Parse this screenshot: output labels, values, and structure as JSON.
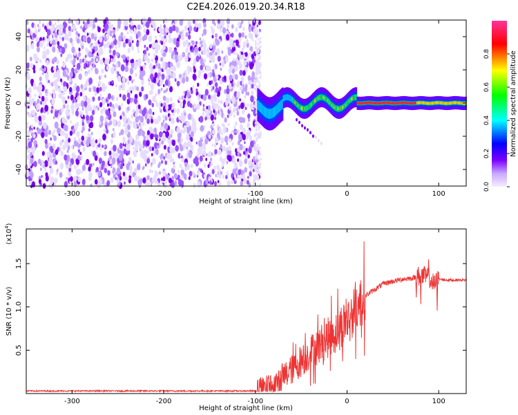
{
  "chart_data": [
    {
      "type": "heatmap",
      "title": "C2E4.2026.019.20.34.R18",
      "xlabel": "Height of straight line (km)",
      "ylabel": "Frequency (Hz)",
      "xlim": [
        -350,
        130
      ],
      "ylim": [
        -50,
        50
      ],
      "xticks": [
        -300,
        -200,
        -100,
        0,
        100
      ],
      "xtick_labels": [
        "-300",
        "-200",
        "-100",
        "0",
        "100"
      ],
      "yticks": [
        -40,
        -20,
        0,
        20,
        40
      ],
      "ytick_labels": [
        "-40",
        "-20",
        "0",
        "20",
        "40"
      ],
      "colorbar": {
        "label": "Normalized spectral amplitude",
        "range": [
          0,
          1
        ],
        "ticks": [
          0.0,
          0.2,
          0.4,
          0.6,
          0.8
        ],
        "tick_labels": [
          "0.0",
          "0.2",
          "0.4",
          "0.6",
          "0.8"
        ],
        "colors": [
          "#f4eeff",
          "#7a00ff",
          "#0000ff",
          "#00ffff",
          "#00ff00",
          "#ffff00",
          "#ff0000",
          "#ff3399"
        ]
      },
      "regions": [
        {
          "name": "noise",
          "x_range": [
            -350,
            -95
          ],
          "freq_range": [
            -50,
            50
          ],
          "amplitude": "0.05-0.35"
        },
        {
          "name": "signal",
          "x_range": [
            -98,
            130
          ],
          "freq_center": 0,
          "amplitude": "0.3-0.95"
        }
      ]
    },
    {
      "type": "line",
      "xlabel": "Height of straight line (km)",
      "ylabel": "SNR (10 * v/v)",
      "y_multiplier_label": "(x10",
      "y_multiplier_exp": "4",
      "xlim": [
        -350,
        130
      ],
      "ylim": [
        0,
        1.9
      ],
      "xticks": [
        -300,
        -200,
        -100,
        0,
        100
      ],
      "xtick_labels": [
        "-300",
        "-200",
        "-100",
        "0",
        "100"
      ],
      "yticks": [
        0.5,
        1.0,
        1.5
      ],
      "ytick_labels": [
        "0.5",
        "1.0",
        "1.5"
      ],
      "line_color": "#ee3333",
      "series": [
        {
          "name": "SNR",
          "x": [
            -350,
            -100,
            -80,
            -60,
            -40,
            -20,
            0,
            10,
            20,
            40,
            60,
            70,
            80,
            90,
            95,
            100,
            110,
            120,
            130
          ],
          "values": [
            0.03,
            0.03,
            0.1,
            0.28,
            0.48,
            0.65,
            0.85,
            0.97,
            1.13,
            1.27,
            1.32,
            1.33,
            1.36,
            1.34,
            1.25,
            1.32,
            1.31,
            1.31,
            1.31
          ]
        }
      ]
    }
  ]
}
